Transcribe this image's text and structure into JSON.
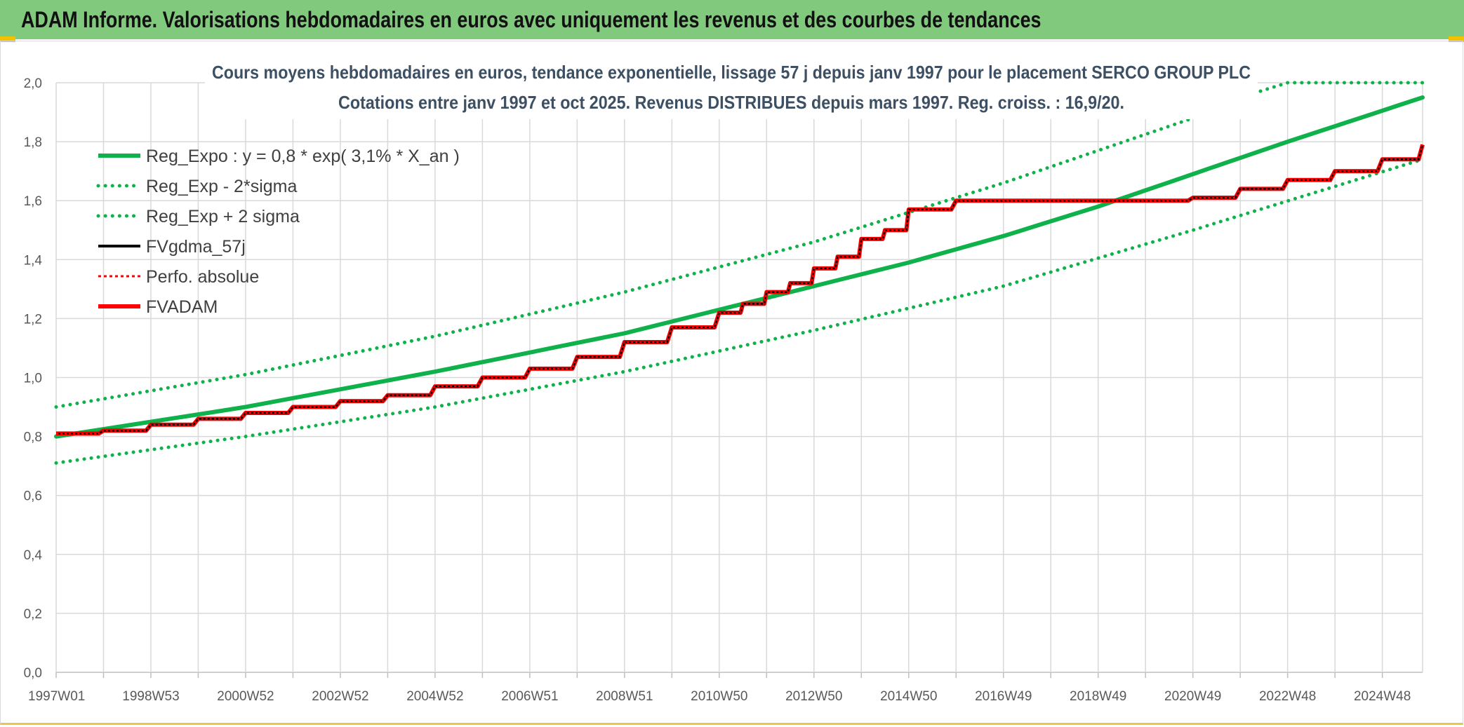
{
  "banner": {
    "title": "ADAM Informe. Valorisations hebdomadaires en euros avec uniquement les revenus et des courbes de tendances"
  },
  "colors": {
    "banner_bg": "#81c97c",
    "green": "#0fb14b",
    "red": "#ff0000",
    "black": "#000000"
  },
  "chart_data": {
    "type": "line",
    "title_lines": [
      "Cours moyens hebdomadaires en euros, tendance exponentielle, lissage 57 j depuis janv 1997 pour le placement SERCO GROUP PLC",
      "Cotations entre janv 1997 et oct 2025. Revenus DISTRIBUES depuis mars 1997. Reg. croiss. : 16,9/20."
    ],
    "xlabel": "",
    "ylabel": "",
    "x_range": [
      1997.0,
      2025.85
    ],
    "ylim": [
      0,
      2
    ],
    "yticks": [
      "0,0",
      "0,2",
      "0,4",
      "0,6",
      "0,8",
      "1,0",
      "1,2",
      "1,4",
      "1,6",
      "1,8",
      "2,0"
    ],
    "xticks": [
      {
        "label": "1997W01",
        "x": 1997.0
      },
      {
        "label": "1998W53",
        "x": 1999.0
      },
      {
        "label": "2000W52",
        "x": 2001.0
      },
      {
        "label": "2002W52",
        "x": 2003.0
      },
      {
        "label": "2004W52",
        "x": 2005.0
      },
      {
        "label": "2006W51",
        "x": 2007.0
      },
      {
        "label": "2008W51",
        "x": 2009.0
      },
      {
        "label": "2010W50",
        "x": 2011.0
      },
      {
        "label": "2012W50",
        "x": 2013.0
      },
      {
        "label": "2014W50",
        "x": 2015.0
      },
      {
        "label": "2016W49",
        "x": 2017.0
      },
      {
        "label": "2018W49",
        "x": 2019.0
      },
      {
        "label": "2020W49",
        "x": 2021.0
      },
      {
        "label": "2022W48",
        "x": 2023.0
      },
      {
        "label": "2024W48",
        "x": 2025.0
      }
    ],
    "grid": true,
    "legend_position": "top-left",
    "series": [
      {
        "name": "Reg_Expo : y = 0,8 * exp( 3,1% *  X_an )",
        "style": "solid-thick",
        "color": "#0fb14b",
        "x": [
          1997.0,
          2001.0,
          2005.0,
          2009.0,
          2011.0,
          2013.0,
          2015.0,
          2017.0,
          2019.0,
          2021.0,
          2023.0,
          2025.85
        ],
        "y": [
          0.8,
          0.9,
          1.02,
          1.15,
          1.23,
          1.31,
          1.39,
          1.48,
          1.58,
          1.69,
          1.8,
          1.95
        ]
      },
      {
        "name": "Reg_Exp - 2*sigma",
        "style": "dotted",
        "color": "#0fb14b",
        "x": [
          1997.0,
          2001.0,
          2005.0,
          2009.0,
          2013.0,
          2017.0,
          2021.0,
          2025.85
        ],
        "y": [
          0.71,
          0.8,
          0.9,
          1.02,
          1.16,
          1.31,
          1.5,
          1.74
        ]
      },
      {
        "name": "Reg_Exp + 2 sigma",
        "style": "dotted",
        "color": "#0fb14b",
        "x": [
          1997.0,
          2001.0,
          2005.0,
          2009.0,
          2013.0,
          2017.0,
          2021.0,
          2022.4,
          2023.0,
          2025.85
        ],
        "y": [
          0.9,
          1.01,
          1.14,
          1.29,
          1.46,
          1.66,
          1.88,
          1.97,
          2.0,
          2.0
        ]
      },
      {
        "name": "FVgdma_57j",
        "style": "solid",
        "color": "#000000",
        "x": [
          1997.0,
          1998.0,
          1999.0,
          2000.0,
          2001.0,
          2002.0,
          2003.0,
          2004.0,
          2005.0,
          2006.0,
          2007.0,
          2008.0,
          2009.0,
          2010.0,
          2011.0,
          2011.5,
          2012.0,
          2012.5,
          2013.0,
          2013.5,
          2014.0,
          2014.5,
          2015.0,
          2016.0,
          2018.0,
          2020.0,
          2021.0,
          2022.0,
          2023.0,
          2024.0,
          2025.0,
          2025.85
        ],
        "y": [
          0.81,
          0.82,
          0.84,
          0.86,
          0.88,
          0.9,
          0.92,
          0.94,
          0.97,
          1.0,
          1.03,
          1.07,
          1.12,
          1.17,
          1.22,
          1.25,
          1.29,
          1.32,
          1.37,
          1.41,
          1.47,
          1.5,
          1.57,
          1.6,
          1.6,
          1.6,
          1.61,
          1.64,
          1.67,
          1.7,
          1.74,
          1.79
        ]
      },
      {
        "name": "Perfo. absolue",
        "style": "dotted-thin",
        "color": "#ff0000",
        "x": [
          1997.0,
          1998.0,
          1999.0,
          2000.0,
          2001.0,
          2002.0,
          2003.0,
          2004.0,
          2005.0,
          2006.0,
          2007.0,
          2008.0,
          2009.0,
          2010.0,
          2011.0,
          2011.5,
          2012.0,
          2012.5,
          2013.0,
          2013.5,
          2014.0,
          2014.5,
          2015.0,
          2016.0,
          2018.0,
          2020.0,
          2021.0,
          2022.0,
          2023.0,
          2024.0,
          2025.0,
          2025.85
        ],
        "y": [
          0.81,
          0.82,
          0.84,
          0.86,
          0.88,
          0.9,
          0.92,
          0.94,
          0.97,
          1.0,
          1.03,
          1.07,
          1.12,
          1.17,
          1.22,
          1.25,
          1.29,
          1.32,
          1.37,
          1.41,
          1.47,
          1.5,
          1.57,
          1.6,
          1.6,
          1.6,
          1.61,
          1.64,
          1.67,
          1.7,
          1.74,
          1.79
        ]
      },
      {
        "name": "FVADAM",
        "style": "step-thick",
        "color": "#ff0000",
        "x": [
          1997.0,
          1998.0,
          1999.0,
          2000.0,
          2001.0,
          2002.0,
          2003.0,
          2004.0,
          2005.0,
          2006.0,
          2007.0,
          2008.0,
          2009.0,
          2010.0,
          2011.0,
          2011.5,
          2012.0,
          2012.5,
          2013.0,
          2013.5,
          2014.0,
          2014.5,
          2015.0,
          2016.0,
          2018.0,
          2020.0,
          2021.0,
          2022.0,
          2023.0,
          2024.0,
          2025.0,
          2025.85
        ],
        "y": [
          0.81,
          0.82,
          0.84,
          0.86,
          0.88,
          0.9,
          0.92,
          0.94,
          0.97,
          1.0,
          1.03,
          1.07,
          1.12,
          1.17,
          1.22,
          1.25,
          1.29,
          1.32,
          1.37,
          1.41,
          1.47,
          1.5,
          1.57,
          1.6,
          1.6,
          1.6,
          1.61,
          1.64,
          1.67,
          1.7,
          1.74,
          1.79
        ]
      }
    ]
  }
}
